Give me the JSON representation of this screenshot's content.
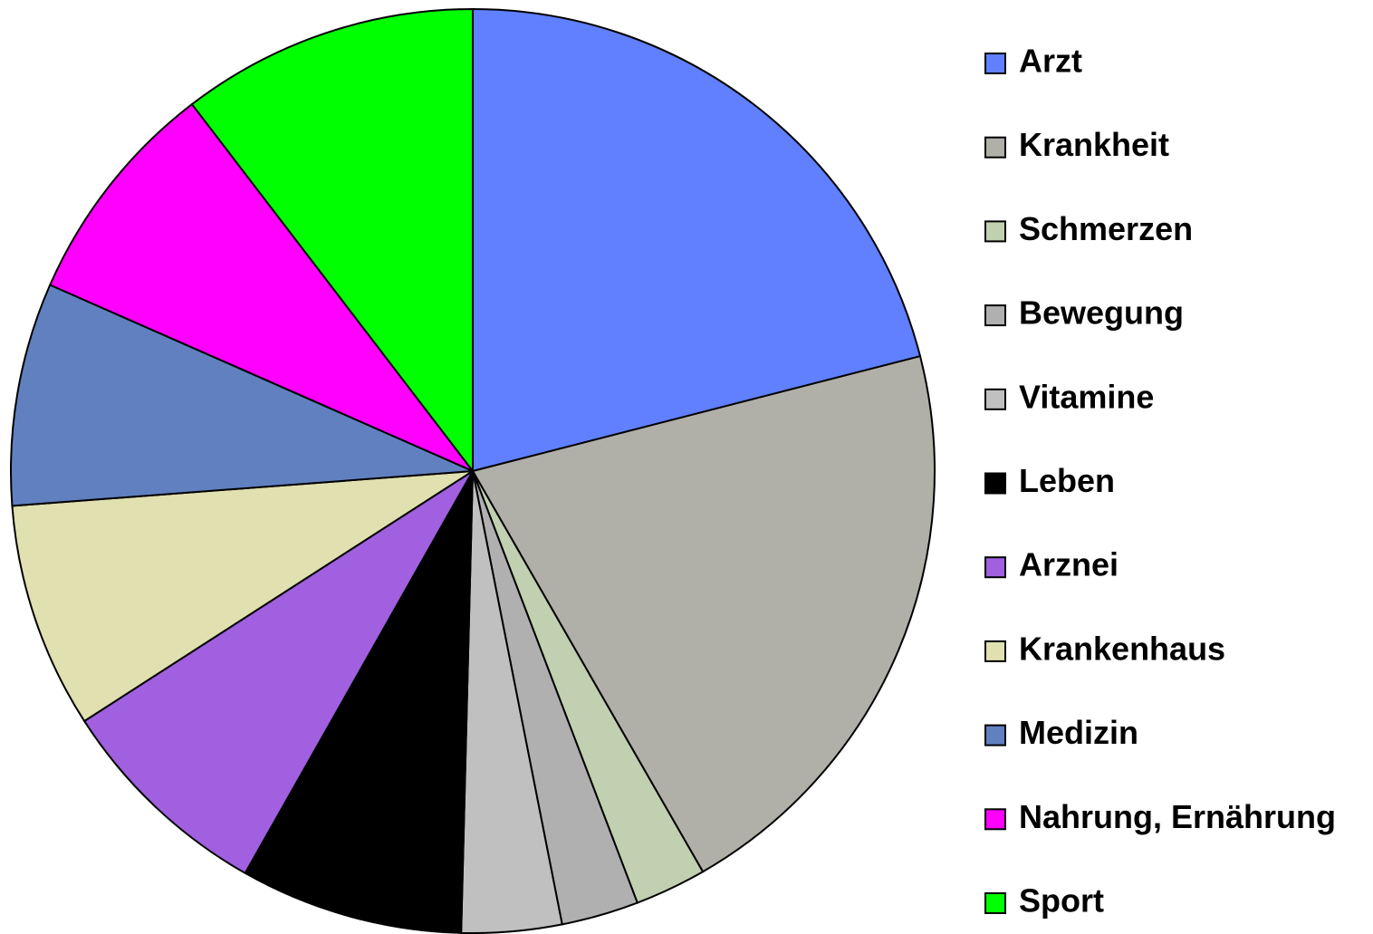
{
  "chart_data": {
    "type": "pie",
    "categories": [
      "Arzt",
      "Krankheit",
      "Schmerzen",
      "Bewegung",
      "Vitamine",
      "Leben",
      "Arznei",
      "Krankenhaus",
      "Medizin",
      "Nahrung, Ernährung",
      "Sport"
    ],
    "values": [
      21,
      20.7,
      2.5,
      2.7,
      3.5,
      7.8,
      7.7,
      7.9,
      7.8,
      8,
      10.4
    ],
    "colors": [
      "#6080ff",
      "#b0b0a8",
      "#c0d0b0",
      "#b0b0b0",
      "#c0c0c0",
      "#000000",
      "#a060e0",
      "#e0e0b0",
      "#6080c0",
      "#ff00ff",
      "#00ff00"
    ],
    "legend": "right"
  }
}
